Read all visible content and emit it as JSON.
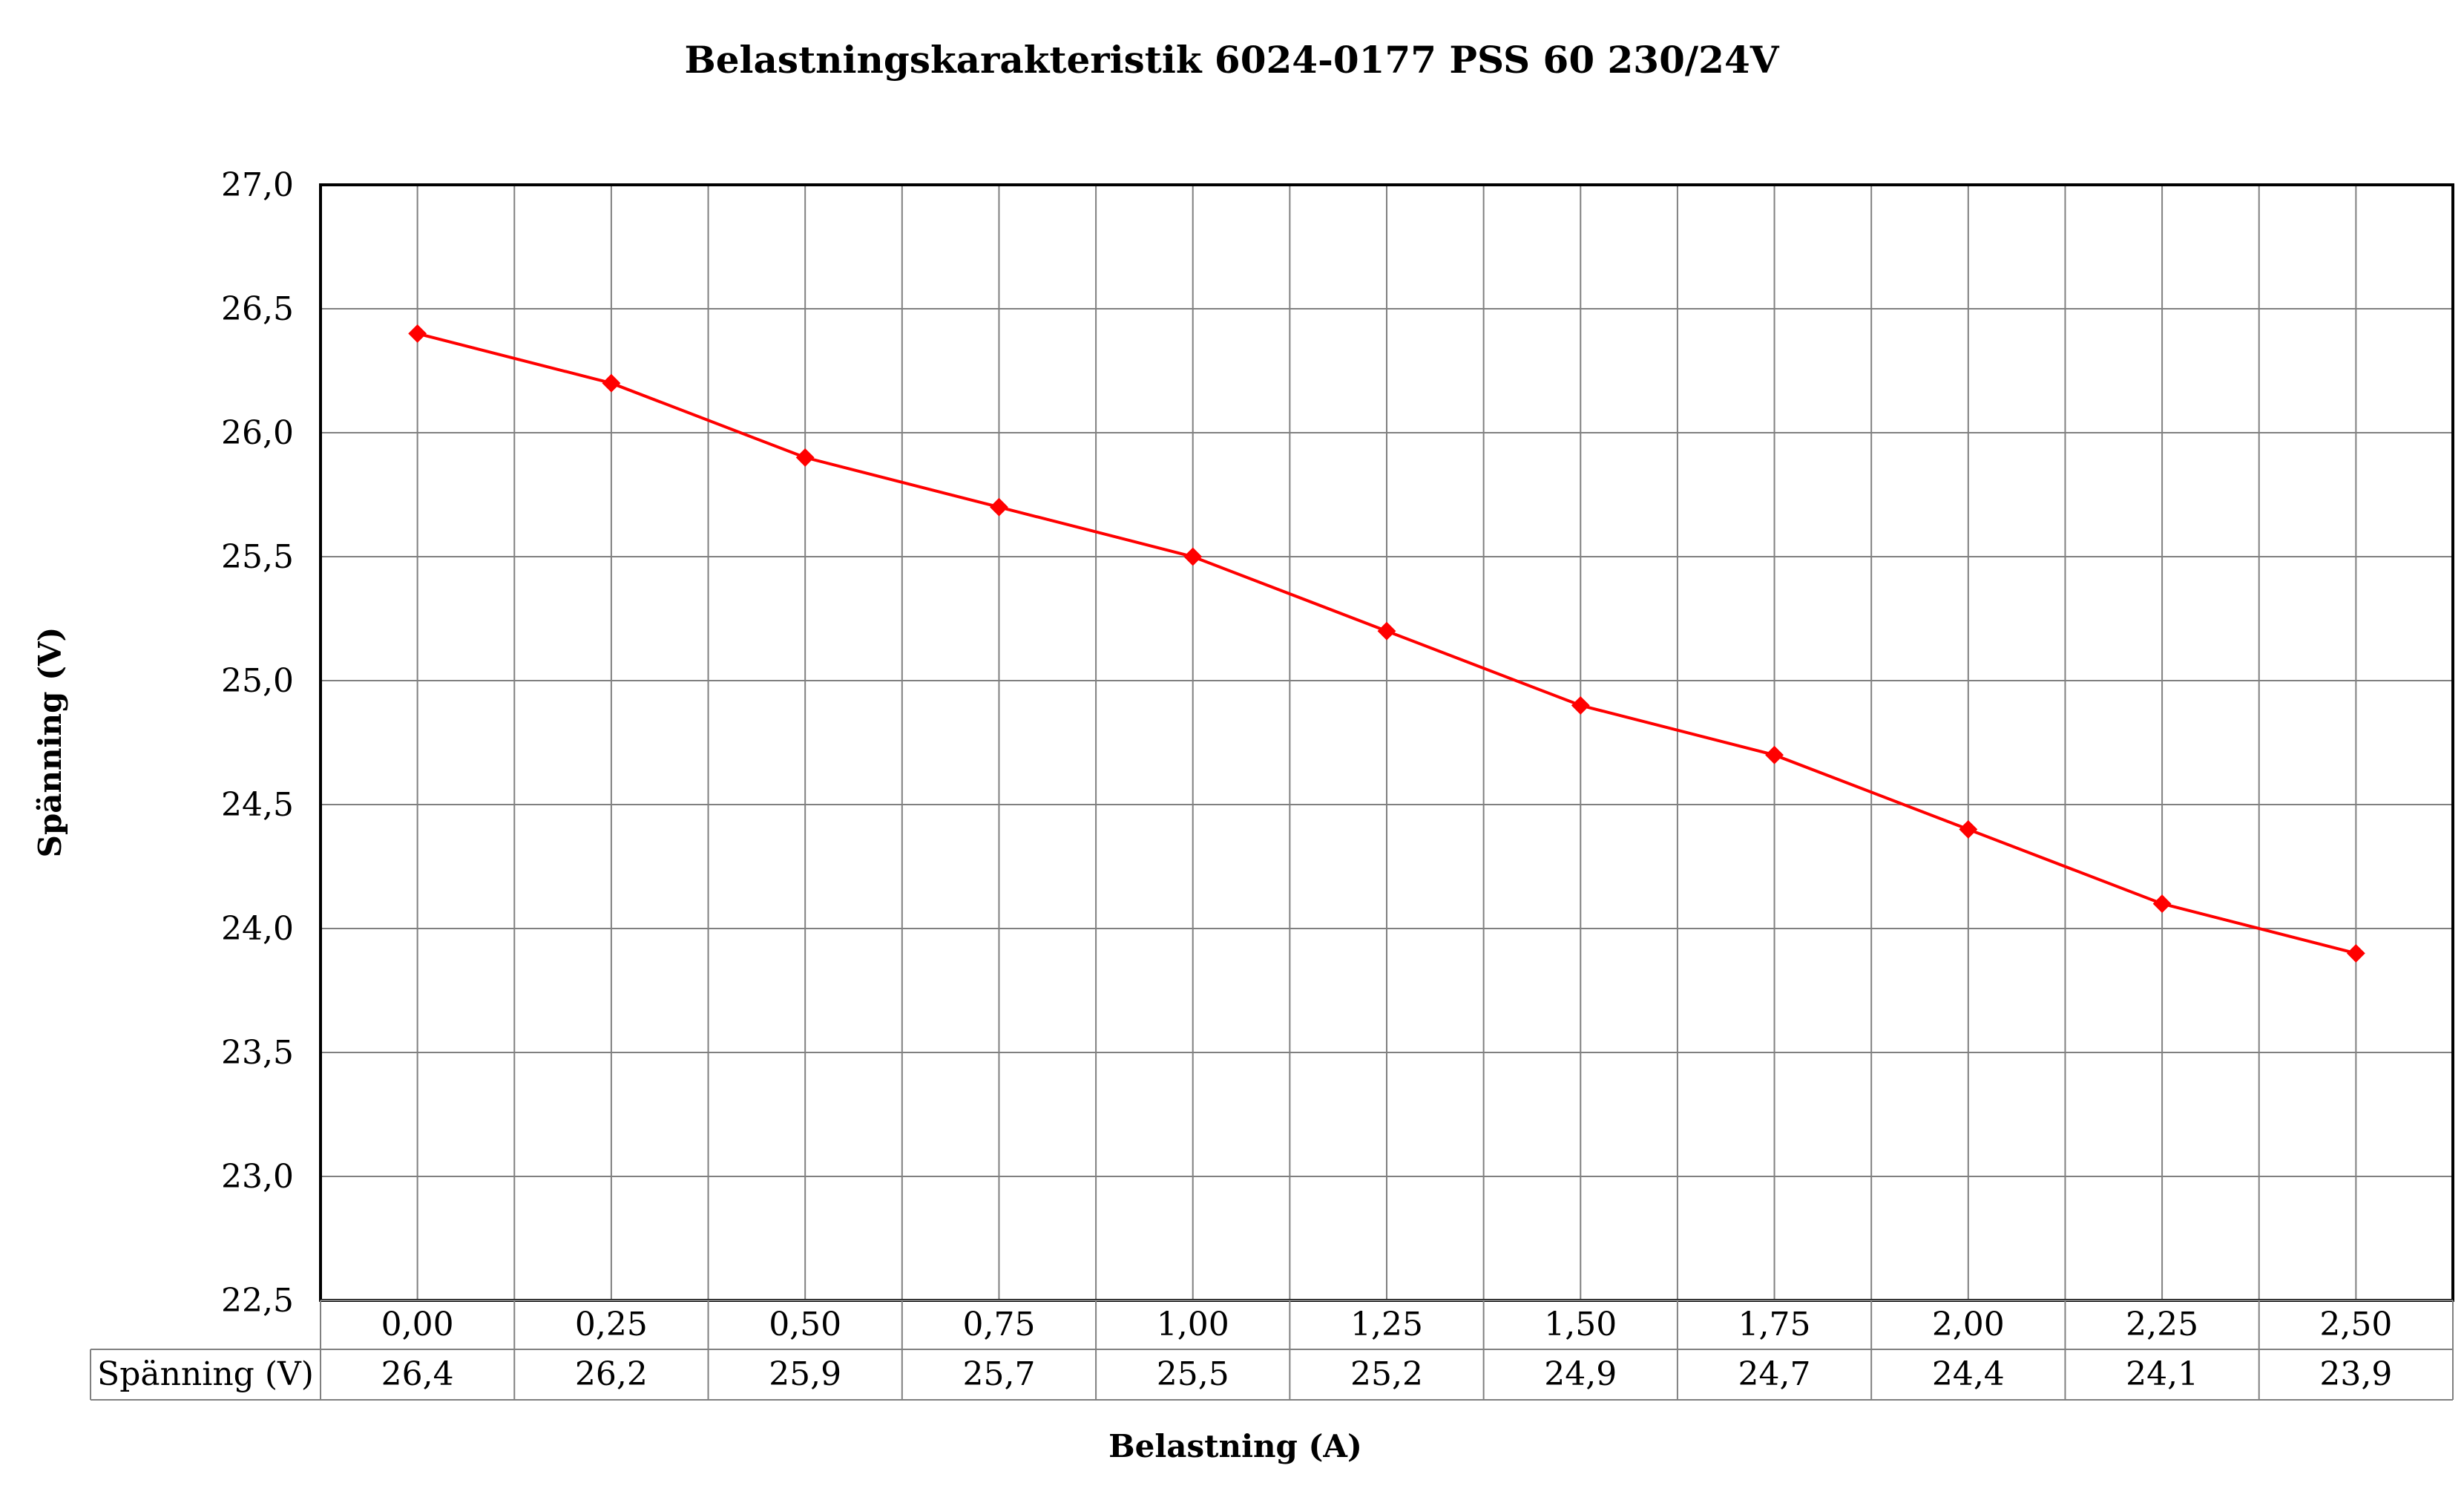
{
  "chart_data": {
    "type": "line",
    "title": "Belastningskarakteristik 6024-0177 PSS 60 230/24V",
    "xlabel": "Belastning (A)",
    "ylabel": "Spänning (V)",
    "categories": [
      "0,00",
      "0,25",
      "0,50",
      "0,75",
      "1,00",
      "1,25",
      "1,50",
      "1,75",
      "2,00",
      "2,25",
      "2,50"
    ],
    "series": [
      {
        "name": "Spänning (V)",
        "values": [
          26.4,
          26.2,
          25.9,
          25.7,
          25.5,
          25.2,
          24.9,
          24.7,
          24.4,
          24.1,
          23.9
        ],
        "value_labels": [
          "26,4",
          "26,2",
          "25,9",
          "25,7",
          "25,5",
          "25,2",
          "24,9",
          "24,7",
          "24,4",
          "24,1",
          "23,9"
        ],
        "color": "#ff0000",
        "marker": "diamond"
      }
    ],
    "ylim": [
      22.5,
      27.0
    ],
    "yticks": [
      22.5,
      23.0,
      23.5,
      24.0,
      24.5,
      25.0,
      25.5,
      26.0,
      26.5,
      27.0
    ],
    "ytick_labels": [
      "22,5",
      "23,0",
      "23,5",
      "24,0",
      "24,5",
      "25,0",
      "25,5",
      "26,0",
      "26,5",
      "27,0"
    ],
    "grid": true,
    "data_table": true,
    "legend": "data-table"
  }
}
